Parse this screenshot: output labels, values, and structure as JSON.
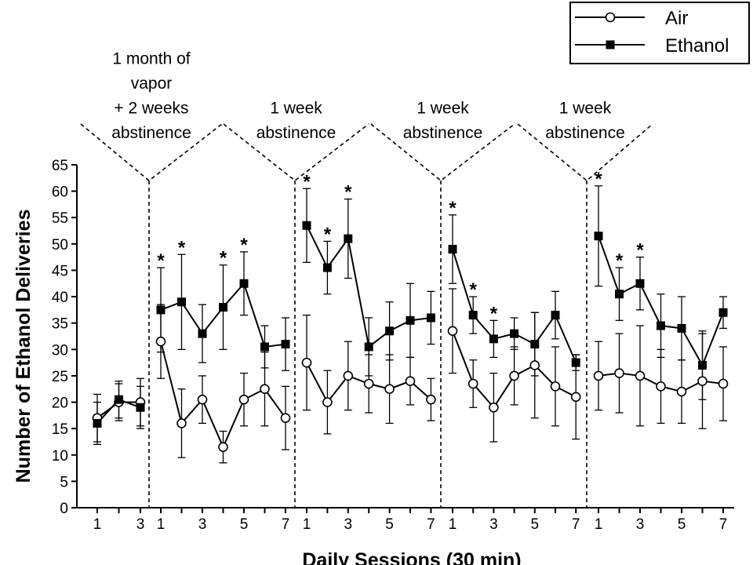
{
  "chart_data": {
    "type": "line",
    "xlabel": "Daily Sessions (30 min)",
    "ylabel": "Number of Ethanol Deliveries",
    "ylim": [
      0,
      65
    ],
    "yticks": [
      0,
      5,
      10,
      15,
      20,
      25,
      30,
      35,
      40,
      45,
      50,
      55,
      60,
      65
    ],
    "grid": false,
    "legend_position": "top-right",
    "phase_labels": [
      "1 month of\nvapor\n+ 2 weeks\nabstinence",
      "1 week\nabstinence",
      "1 week\nabstinence",
      "1 week\nabstinence"
    ],
    "blocks": [
      {
        "sessions": [
          1,
          2,
          3
        ],
        "tick_labels": [
          "1",
          "3"
        ]
      },
      {
        "sessions": [
          1,
          2,
          3,
          4,
          5,
          6,
          7
        ],
        "tick_labels": [
          "1",
          "3",
          "5",
          "7"
        ]
      },
      {
        "sessions": [
          1,
          2,
          3,
          4,
          5,
          6,
          7
        ],
        "tick_labels": [
          "1",
          "3",
          "5",
          "7"
        ]
      },
      {
        "sessions": [
          1,
          2,
          3,
          4,
          5,
          6,
          7
        ],
        "tick_labels": [
          "1",
          "3",
          "5",
          "7"
        ]
      },
      {
        "sessions": [
          1,
          2,
          3,
          4,
          5,
          6,
          7
        ],
        "tick_labels": [
          "1",
          "3",
          "5",
          "7"
        ]
      }
    ],
    "series": [
      {
        "name": "Air",
        "marker": "open-circle",
        "color": "#000000",
        "blocks": [
          {
            "values": [
              17,
              20,
              20
            ],
            "errors": [
              4.5,
              3.5,
              4.5
            ]
          },
          {
            "values": [
              31.5,
              16,
              20.5,
              11.5,
              20.5,
              22.5,
              17
            ],
            "errors": [
              7,
              6.5,
              4.5,
              3,
              5,
              7,
              6
            ]
          },
          {
            "values": [
              27.5,
              20,
              25,
              23.5,
              22.5,
              24,
              20.5
            ],
            "errors": [
              9,
              6,
              6.5,
              5.5,
              6.5,
              4.5,
              4
            ]
          },
          {
            "values": [
              33.5,
              23.5,
              19,
              25,
              27,
              23,
              21
            ],
            "errors": [
              8,
              4.5,
              6.5,
              5.5,
              10,
              7.5,
              8
            ]
          },
          {
            "values": [
              25,
              25.5,
              25,
              23,
              22,
              24,
              23.5
            ],
            "errors": [
              6.5,
              7.5,
              9.5,
              7,
              6,
              9,
              7
            ]
          }
        ]
      },
      {
        "name": "Ethanol",
        "marker": "filled-square",
        "color": "#000000",
        "blocks": [
          {
            "values": [
              16,
              20.5,
              19
            ],
            "errors": [
              4,
              3.5,
              4
            ]
          },
          {
            "values": [
              37.5,
              39,
              33,
              38,
              42.5,
              30.5,
              31
            ],
            "errors": [
              8,
              9,
              5.5,
              8,
              6,
              4,
              5
            ]
          },
          {
            "values": [
              53.5,
              45.5,
              51,
              30.5,
              33.5,
              35.5,
              36
            ],
            "errors": [
              7,
              5,
              7.5,
              5.5,
              5.5,
              7,
              5
            ]
          },
          {
            "values": [
              49,
              36.5,
              32,
              33,
              31,
              36.5,
              27.5
            ],
            "errors": [
              6.5,
              3.5,
              3.5,
              3,
              6,
              4.5,
              1.5
            ]
          },
          {
            "values": [
              51.5,
              40.5,
              42.5,
              34.5,
              34,
              27,
              37
            ],
            "errors": [
              9.5,
              5,
              5,
              6,
              6,
              6.5,
              3
            ]
          }
        ]
      }
    ],
    "significance_marker": "*",
    "significant_points": [
      {
        "block": 1,
        "sessions": [
          1,
          2,
          4,
          5
        ]
      },
      {
        "block": 2,
        "sessions": [
          1,
          2,
          3
        ]
      },
      {
        "block": 3,
        "sessions": [
          1,
          2,
          3
        ]
      },
      {
        "block": 4,
        "sessions": [
          1,
          2,
          3
        ]
      }
    ]
  }
}
